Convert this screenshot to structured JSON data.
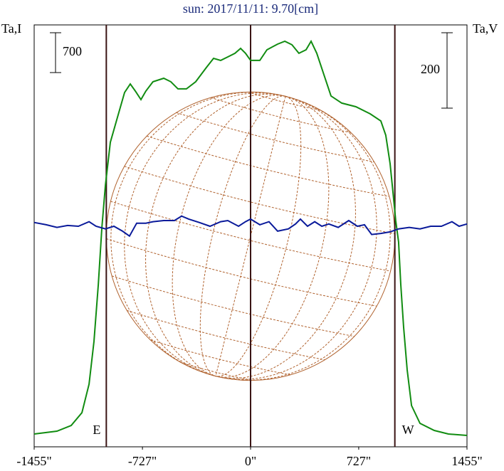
{
  "chart_data": {
    "type": "line",
    "title": "sun: 2017/11/11: 9.70[cm]",
    "y_label": "Ta,I",
    "y2_label": "Ta,V",
    "xlim": [
      -1455,
      1455
    ],
    "xticks": [
      {
        "value": -1455,
        "label": "-1455\""
      },
      {
        "value": -727,
        "label": "-727\""
      },
      {
        "value": 0,
        "label": "0\""
      },
      {
        "value": 727,
        "label": "727\""
      },
      {
        "value": 1455,
        "label": "1455\""
      }
    ],
    "ylim": [
      0,
      7412
    ],
    "y2lim": [
      -591,
      528
    ],
    "scale_bars": [
      {
        "axis": "y",
        "value": 700
      },
      {
        "axis": "y2",
        "value": 200
      }
    ],
    "markers": [
      {
        "x": -970,
        "label": "E"
      },
      {
        "x": 0
      },
      {
        "x": 970,
        "label": "W"
      }
    ],
    "series": [
      {
        "name": "I",
        "axis": "y",
        "color": "#118c11",
        "x": [
          -1455,
          -1302,
          -1206,
          -1134,
          -1086,
          -1053,
          -1024,
          -1000,
          -976,
          -943,
          -895,
          -847,
          -809,
          -775,
          -737,
          -704,
          -656,
          -584,
          -536,
          -488,
          -431,
          -369,
          -297,
          -249,
          -201,
          -153,
          -105,
          -67,
          -34,
          0,
          62,
          110,
          182,
          230,
          278,
          325,
          373,
          407,
          445,
          493,
          541,
          613,
          708,
          804,
          876,
          909,
          938,
          957,
          976,
          995,
          1010,
          1029,
          1053,
          1082,
          1139,
          1235,
          1330,
          1455
        ],
        "values": [
          225,
          275,
          375,
          600,
          1100,
          1850,
          2850,
          3850,
          4600,
          5350,
          5788,
          6225,
          6375,
          6250,
          6100,
          6250,
          6413,
          6475,
          6413,
          6288,
          6288,
          6413,
          6663,
          6825,
          6788,
          6850,
          6913,
          7000,
          6913,
          6788,
          6788,
          6975,
          7075,
          7125,
          7063,
          6913,
          6975,
          7125,
          6913,
          6538,
          6163,
          6038,
          5975,
          5850,
          5725,
          5475,
          4975,
          4475,
          3975,
          3600,
          2850,
          2100,
          1350,
          725,
          413,
          288,
          225,
          200
        ]
      },
      {
        "name": "V",
        "axis": "y2",
        "color": "#0a1a9a",
        "x": [
          -1455,
          -1374,
          -1302,
          -1230,
          -1158,
          -1086,
          -1039,
          -976,
          -919,
          -861,
          -814,
          -766,
          -704,
          -656,
          -584,
          -512,
          -464,
          -416,
          -345,
          -273,
          -201,
          -153,
          -81,
          -34,
          0,
          62,
          124,
          182,
          254,
          302,
          335,
          383,
          431,
          479,
          526,
          589,
          660,
          718,
          766,
          814,
          876,
          938,
          995,
          1067,
          1139,
          1211,
          1283,
          1354,
          1402,
          1455
        ],
        "values": [
          4,
          -2,
          -9,
          -4,
          -6,
          6,
          -6,
          -13,
          -6,
          -19,
          -32,
          2,
          2,
          6,
          9,
          9,
          21,
          13,
          4,
          -6,
          6,
          9,
          -6,
          6,
          13,
          -2,
          6,
          -19,
          -13,
          0,
          13,
          -6,
          6,
          -6,
          0,
          -9,
          9,
          -6,
          -2,
          -28,
          -25,
          -21,
          -13,
          -9,
          -13,
          -6,
          -6,
          6,
          -6,
          0
        ]
      }
    ]
  }
}
